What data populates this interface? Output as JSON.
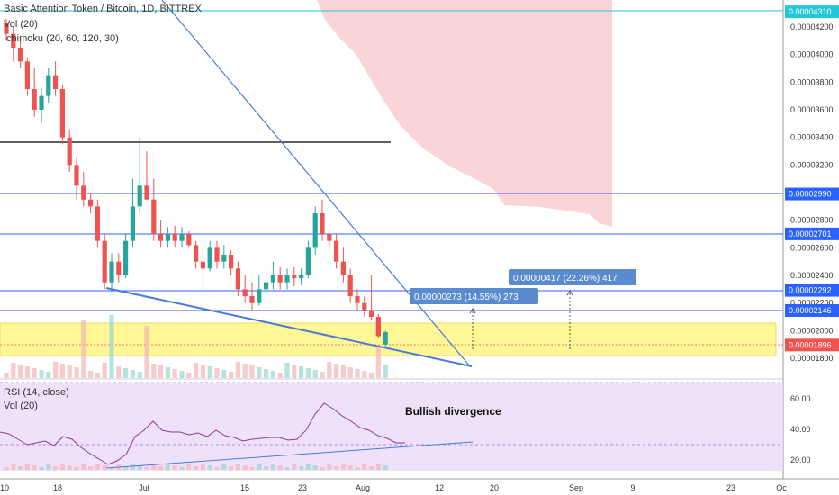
{
  "header": {
    "title": "Basic Attention Token / Bitcoin, 1D, BITTREX",
    "vol": "Vol (20)",
    "ichimoku": "Ichimoku (20, 60, 120, 30)"
  },
  "rsi_pane": {
    "rsi_label": "RSI (14, close)",
    "vol_label": "Vol (20)"
  },
  "annotation": "Bullish divergence",
  "measure_boxes": [
    {
      "text": "0.00000273 (14.55%) 273"
    },
    {
      "text": "0.00000417 (22.26%) 417"
    }
  ],
  "price_tags": [
    {
      "text": "0.00004310",
      "color": "#26c6da"
    },
    {
      "text": "0.00002990",
      "color": "#2962ff"
    },
    {
      "text": "0.00002701",
      "color": "#2962ff"
    },
    {
      "text": "0.00002292",
      "color": "#2962ff"
    },
    {
      "text": "0.00002146",
      "color": "#2962ff"
    },
    {
      "text": "0.00001896",
      "color": "#ef5350"
    }
  ],
  "price_axis_ticks": [
    "0.00004200",
    "0.00004000",
    "0.00003800",
    "0.00003600",
    "0.00003400",
    "0.00003200",
    "0.00003000",
    "0.00002800",
    "0.00002600",
    "0.00002400",
    "0.00002200",
    "0.00002000",
    "0.00001800"
  ],
  "rsi_axis_ticks": [
    "60.00",
    "40.00",
    "20.00"
  ],
  "time_axis_ticks": [
    "10",
    "18",
    "Jul",
    "15",
    "23",
    "Aug",
    "12",
    "20",
    "Sep",
    "9",
    "23",
    "Oc"
  ],
  "chart_data": {
    "type": "candlestick",
    "title": "Basic Attention Token / Bitcoin, 1D, BITTREX",
    "y_range": [
      1.75e-05,
      4.32e-05
    ],
    "candles": [
      [
        4.23e-05,
        4.26e-05,
        4.1e-05,
        4.15e-05
      ],
      [
        4.15e-05,
        4.2e-05,
        3.95e-05,
        4.05e-05
      ],
      [
        4.05e-05,
        4.12e-05,
        3.9e-05,
        3.95e-05
      ],
      [
        3.95e-05,
        3.98e-05,
        3.7e-05,
        3.75e-05
      ],
      [
        3.75e-05,
        3.9e-05,
        3.55e-05,
        3.6e-05
      ],
      [
        3.6e-05,
        3.76e-05,
        3.5e-05,
        3.7e-05
      ],
      [
        3.7e-05,
        3.9e-05,
        3.65e-05,
        3.85e-05
      ],
      [
        3.85e-05,
        3.95e-05,
        3.7e-05,
        3.75e-05
      ],
      [
        3.75e-05,
        3.78e-05,
        3.35e-05,
        3.4e-05
      ],
      [
        3.4e-05,
        3.45e-05,
        3.15e-05,
        3.2e-05
      ],
      [
        3.2e-05,
        3.25e-05,
        2.95e-05,
        3.05e-05
      ],
      [
        3.05e-05,
        3.15e-05,
        2.9e-05,
        2.95e-05
      ],
      [
        2.95e-05,
        3e-05,
        2.85e-05,
        2.9e-05
      ],
      [
        2.9e-05,
        2.95e-05,
        2.6e-05,
        2.65e-05
      ],
      [
        2.65e-05,
        2.7e-05,
        2.3e-05,
        2.35e-05
      ],
      [
        2.35e-05,
        2.56e-05,
        2.28e-05,
        2.5e-05
      ],
      [
        2.5e-05,
        2.56e-05,
        2.35e-05,
        2.4e-05
      ],
      [
        2.4e-05,
        2.7e-05,
        2.38e-05,
        2.65e-05
      ],
      [
        2.65e-05,
        3.1e-05,
        2.6e-05,
        2.9e-05
      ],
      [
        2.9e-05,
        3.4e-05,
        2.85e-05,
        3.05e-05
      ],
      [
        3.05e-05,
        3.3e-05,
        2.95e-05,
        2.95e-05
      ],
      [
        2.95e-05,
        3.1e-05,
        2.65e-05,
        2.7e-05
      ],
      [
        2.7e-05,
        2.8e-05,
        2.6e-05,
        2.65e-05
      ],
      [
        2.65e-05,
        2.75e-05,
        2.6e-05,
        2.7e-05
      ],
      [
        2.7e-05,
        2.76e-05,
        2.6e-05,
        2.65e-05
      ],
      [
        2.65e-05,
        2.75e-05,
        2.6e-05,
        2.7e-05
      ],
      [
        2.7e-05,
        2.72e-05,
        2.6e-05,
        2.62e-05
      ],
      [
        2.62e-05,
        2.65e-05,
        2.45e-05,
        2.5e-05
      ],
      [
        2.5e-05,
        2.6e-05,
        2.3e-05,
        2.45e-05
      ],
      [
        2.45e-05,
        2.65e-05,
        2.43e-05,
        2.6e-05
      ],
      [
        2.6e-05,
        2.65e-05,
        2.45e-05,
        2.5e-05
      ],
      [
        2.5e-05,
        2.62e-05,
        2.45e-05,
        2.55e-05
      ],
      [
        2.55e-05,
        2.58e-05,
        2.4e-05,
        2.45e-05
      ],
      [
        2.45e-05,
        2.5e-05,
        2.25e-05,
        2.3e-05
      ],
      [
        2.3e-05,
        2.4e-05,
        2.2e-05,
        2.25e-05
      ],
      [
        2.25e-05,
        2.35e-05,
        2.15e-05,
        2.2e-05
      ],
      [
        2.2e-05,
        2.4e-05,
        2.18e-05,
        2.3e-05
      ],
      [
        2.3e-05,
        2.45e-05,
        2.25e-05,
        2.35e-05
      ],
      [
        2.35e-05,
        2.5e-05,
        2.3e-05,
        2.4e-05
      ],
      [
        2.4e-05,
        2.46e-05,
        2.3e-05,
        2.35e-05
      ],
      [
        2.35e-05,
        2.45e-05,
        2.3e-05,
        2.4e-05
      ],
      [
        2.4e-05,
        2.46e-05,
        2.32e-05,
        2.38e-05
      ],
      [
        2.38e-05,
        2.45e-05,
        2.33e-05,
        2.4e-05
      ],
      [
        2.4e-05,
        2.65e-05,
        2.38e-05,
        2.6e-05
      ],
      [
        2.6e-05,
        2.9e-05,
        2.55e-05,
        2.85e-05
      ],
      [
        2.85e-05,
        2.95e-05,
        2.65e-05,
        2.7e-05
      ],
      [
        2.7e-05,
        2.72e-05,
        2.6e-05,
        2.65e-05
      ],
      [
        2.65e-05,
        2.7e-05,
        2.45e-05,
        2.5e-05
      ],
      [
        2.5e-05,
        2.6e-05,
        2.35e-05,
        2.4e-05
      ],
      [
        2.4e-05,
        2.45e-05,
        2.2e-05,
        2.25e-05
      ],
      [
        2.25e-05,
        2.3e-05,
        2.15e-05,
        2.2e-05
      ],
      [
        2.2e-05,
        2.25e-05,
        2.1e-05,
        2.15e-05
      ],
      [
        2.15e-05,
        2.4e-05,
        2.08e-05,
        2.1e-05
      ],
      [
        2.1e-05,
        2.12e-05,
        1.95e-05,
        1.96e-05
      ],
      [
        1.9e-05,
        2e-05,
        1.88e-05,
        1.99e-05
      ]
    ]
  }
}
